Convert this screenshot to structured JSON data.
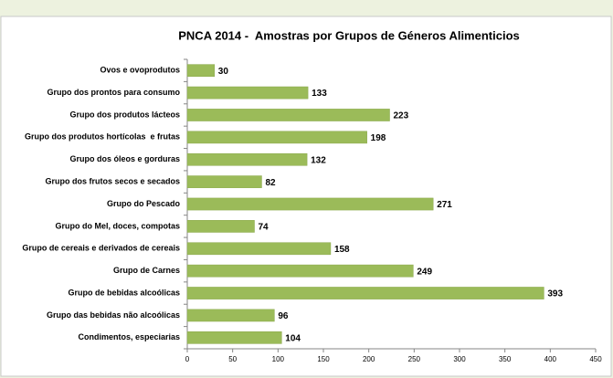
{
  "chart_data": {
    "type": "bar",
    "orientation": "horizontal",
    "title": "PNCA 2014 -  Amostras por Grupos de Géneros Alimenticios",
    "categories": [
      "Ovos e ovoprodutos",
      "Grupo dos prontos para consumo",
      "Grupo dos produtos lácteos",
      "Grupo dos produtos hortícolas  e frutas",
      "Grupo dos óleos e gorduras",
      "Grupo dos frutos secos e secados",
      "Grupo do Pescado",
      "Grupo do Mel, doces, compotas",
      "Grupo de cereais e derivados de cereais",
      "Grupo de Carnes",
      "Grupo de bebidas alcoólicas",
      "Grupo das bebidas não alcoólicas",
      "Condimentos, especiarias"
    ],
    "values": [
      30,
      133,
      223,
      198,
      132,
      82,
      271,
      74,
      158,
      249,
      393,
      96,
      104
    ],
    "color": "#9bbb59",
    "xlim": [
      0,
      450
    ],
    "xticks": [
      0,
      50,
      100,
      150,
      200,
      250,
      300,
      350,
      400,
      450
    ],
    "grid": false
  }
}
